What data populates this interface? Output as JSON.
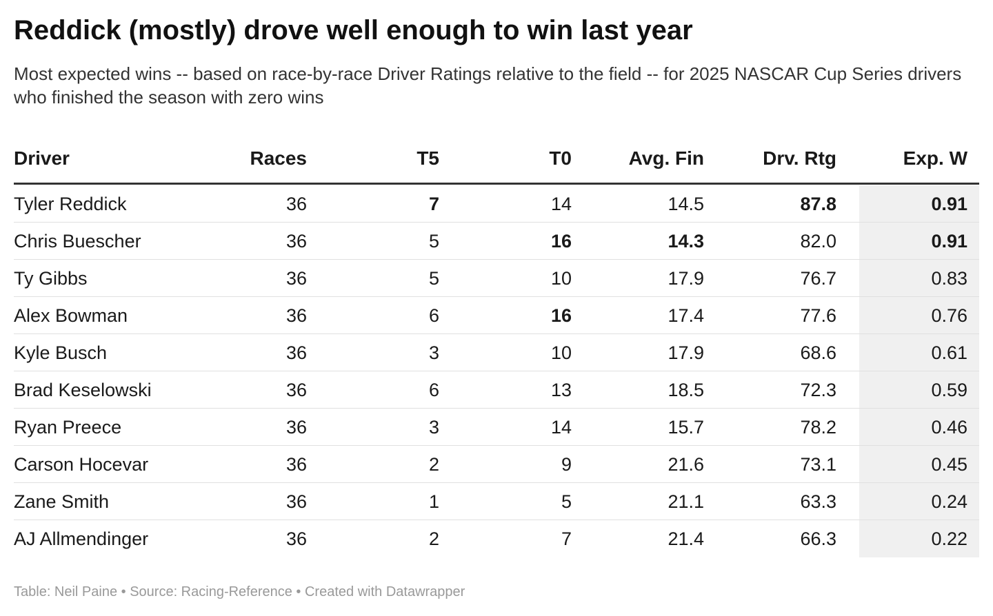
{
  "header": {
    "title": "Reddick (mostly) drove well enough to win last year",
    "subtitle": "Most expected wins -- based on race-by-race Driver Ratings relative to the field -- for 2025 NASCAR Cup Series drivers who finished the season with zero wins"
  },
  "table": {
    "columns": [
      "Driver",
      "Races",
      "T5",
      "T0",
      "Avg. Fin",
      "Drv. Rtg",
      "Exp. W"
    ],
    "rows": [
      [
        "Tyler Reddick",
        "36",
        "7",
        "14",
        "14.5",
        "87.8",
        "0.91"
      ],
      [
        "Chris Buescher",
        "36",
        "5",
        "16",
        "14.3",
        "82.0",
        "0.91"
      ],
      [
        "Ty Gibbs",
        "36",
        "5",
        "10",
        "17.9",
        "76.7",
        "0.83"
      ],
      [
        "Alex Bowman",
        "36",
        "6",
        "16",
        "17.4",
        "77.6",
        "0.76"
      ],
      [
        "Kyle Busch",
        "36",
        "3",
        "10",
        "17.9",
        "68.6",
        "0.61"
      ],
      [
        "Brad Keselowski",
        "36",
        "6",
        "13",
        "18.5",
        "72.3",
        "0.59"
      ],
      [
        "Ryan Preece",
        "36",
        "3",
        "14",
        "15.7",
        "78.2",
        "0.46"
      ],
      [
        "Carson Hocevar",
        "36",
        "2",
        "9",
        "21.6",
        "73.1",
        "0.45"
      ],
      [
        "Zane Smith",
        "36",
        "1",
        "5",
        "21.1",
        "63.3",
        "0.24"
      ],
      [
        "AJ Allmendinger",
        "36",
        "2",
        "7",
        "21.4",
        "66.3",
        "0.22"
      ]
    ],
    "bold_cells": [
      [
        0,
        2
      ],
      [
        0,
        5
      ],
      [
        0,
        6
      ],
      [
        1,
        3
      ],
      [
        1,
        4
      ],
      [
        1,
        6
      ],
      [
        3,
        3
      ]
    ],
    "shaded_column": 6
  },
  "footer": "Table: Neil Paine • Source: Racing-Reference • Created with Datawrapper"
}
